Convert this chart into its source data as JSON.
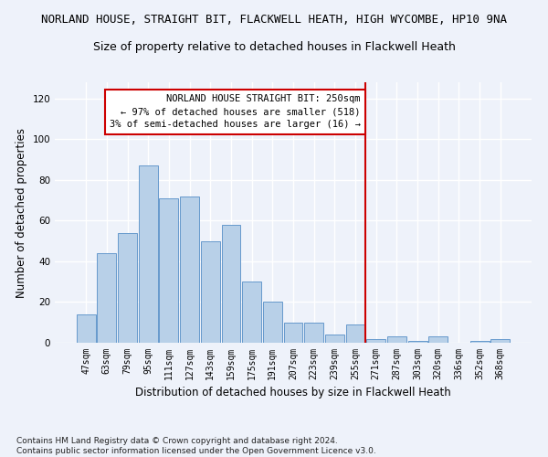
{
  "title": "NORLAND HOUSE, STRAIGHT BIT, FLACKWELL HEATH, HIGH WYCOMBE, HP10 9NA",
  "subtitle": "Size of property relative to detached houses in Flackwell Heath",
  "xlabel": "Distribution of detached houses by size in Flackwell Heath",
  "ylabel": "Number of detached properties",
  "categories": [
    "47sqm",
    "63sqm",
    "79sqm",
    "95sqm",
    "111sqm",
    "127sqm",
    "143sqm",
    "159sqm",
    "175sqm",
    "191sqm",
    "207sqm",
    "223sqm",
    "239sqm",
    "255sqm",
    "271sqm",
    "287sqm",
    "303sqm",
    "320sqm",
    "336sqm",
    "352sqm",
    "368sqm"
  ],
  "values": [
    14,
    44,
    54,
    87,
    71,
    72,
    50,
    58,
    30,
    20,
    10,
    10,
    4,
    9,
    2,
    3,
    1,
    3,
    0,
    1,
    2
  ],
  "bar_color": "#b8d0e8",
  "bar_edge_color": "#6699cc",
  "ylim": [
    0,
    128
  ],
  "yticks": [
    0,
    20,
    40,
    60,
    80,
    100,
    120
  ],
  "annotation_text": "NORLAND HOUSE STRAIGHT BIT: 250sqm\n← 97% of detached houses are smaller (518)\n3% of semi-detached houses are larger (16) →",
  "vline_color": "#cc0000",
  "annotation_box_color": "#cc0000",
  "footnote": "Contains HM Land Registry data © Crown copyright and database right 2024.\nContains public sector information licensed under the Open Government Licence v3.0.",
  "bg_color": "#eef2fa",
  "grid_color": "#ffffff",
  "title_fontsize": 9,
  "subtitle_fontsize": 9,
  "ylabel_fontsize": 8.5,
  "xlabel_fontsize": 8.5,
  "tick_fontsize": 7,
  "footnote_fontsize": 6.5,
  "vline_x": 13.5
}
